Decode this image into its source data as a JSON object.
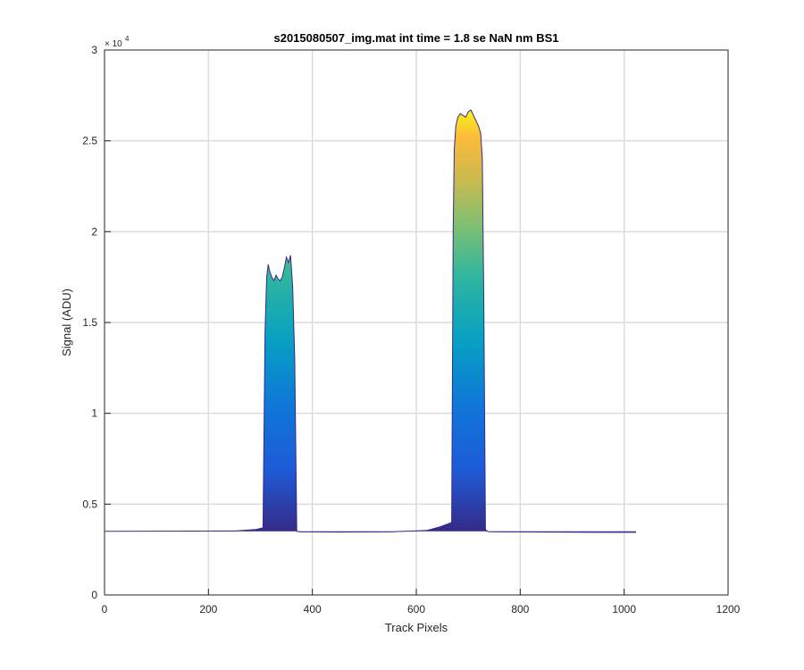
{
  "chart_data": {
    "type": "area",
    "title": "s2015080507_img.mat int time = 1.8 se  NaN nm BS1",
    "xlabel": "Track Pixels",
    "ylabel": "Signal (ADU)",
    "xlim": [
      0,
      1200
    ],
    "ylim": [
      0,
      30000
    ],
    "y_exponent_label": "× 10",
    "y_exponent_power": "4",
    "grid": true,
    "colormap": "parula",
    "x_ticks": [
      0,
      200,
      400,
      600,
      800,
      1000,
      1200
    ],
    "x_tick_labels": [
      "0",
      "200",
      "400",
      "600",
      "800",
      "1000",
      "1200"
    ],
    "y_ticks": [
      0,
      5000,
      10000,
      15000,
      20000,
      25000,
      30000
    ],
    "y_tick_labels": [
      "0",
      "0.5",
      "1",
      "1.5",
      "2",
      "2.5",
      "3"
    ],
    "series": [
      {
        "x": [
          1,
          250,
          290,
          305,
          309,
          312,
          315,
          318,
          322,
          326,
          330,
          334,
          338,
          342,
          346,
          350,
          354,
          358,
          362,
          366,
          370,
          375,
          380,
          450,
          550,
          620,
          645,
          660,
          668,
          671,
          673,
          676,
          680,
          685,
          690,
          695,
          700,
          705,
          710,
          715,
          720,
          724,
          727,
          730,
          733,
          737,
          740,
          760,
          850,
          950,
          1023
        ],
        "y": [
          3500,
          3520,
          3600,
          3700,
          14500,
          17500,
          18200,
          17800,
          17500,
          17300,
          17600,
          17400,
          17300,
          17500,
          18000,
          18600,
          18300,
          18700,
          17000,
          13000,
          3500,
          3480,
          3470,
          3460,
          3470,
          3550,
          3750,
          3900,
          4000,
          20000,
          24500,
          25800,
          26300,
          26500,
          26400,
          26300,
          26600,
          26700,
          26400,
          26100,
          25800,
          25400,
          24000,
          16000,
          3600,
          3500,
          3480,
          3470,
          3460,
          3450,
          3450
        ]
      }
    ]
  }
}
